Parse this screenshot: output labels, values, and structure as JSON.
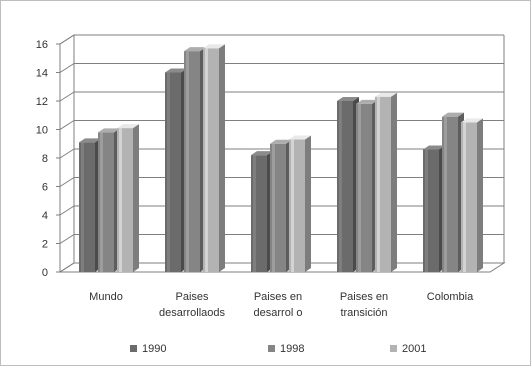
{
  "chart_data": {
    "type": "bar",
    "categories": [
      "Mundo",
      "Paises\ndesarrollaods",
      "Paises en\ndesarrol o",
      "Paises en\ntransición",
      "Colombia"
    ],
    "series": [
      {
        "name": "1990",
        "values": [
          9.1,
          14.0,
          8.2,
          12.0,
          8.6
        ],
        "color": "#6b6b6b"
      },
      {
        "name": "1998",
        "values": [
          9.8,
          15.5,
          9.0,
          11.8,
          10.9
        ],
        "color": "#858585"
      },
      {
        "name": "2001",
        "values": [
          10.1,
          15.7,
          9.3,
          12.3,
          10.5
        ],
        "color": "#b3b3b3"
      }
    ],
    "yticks": [
      0,
      2,
      4,
      6,
      8,
      10,
      12,
      14,
      16
    ],
    "ylim": [
      0,
      16
    ],
    "grid": true,
    "legend_position": "bottom"
  }
}
